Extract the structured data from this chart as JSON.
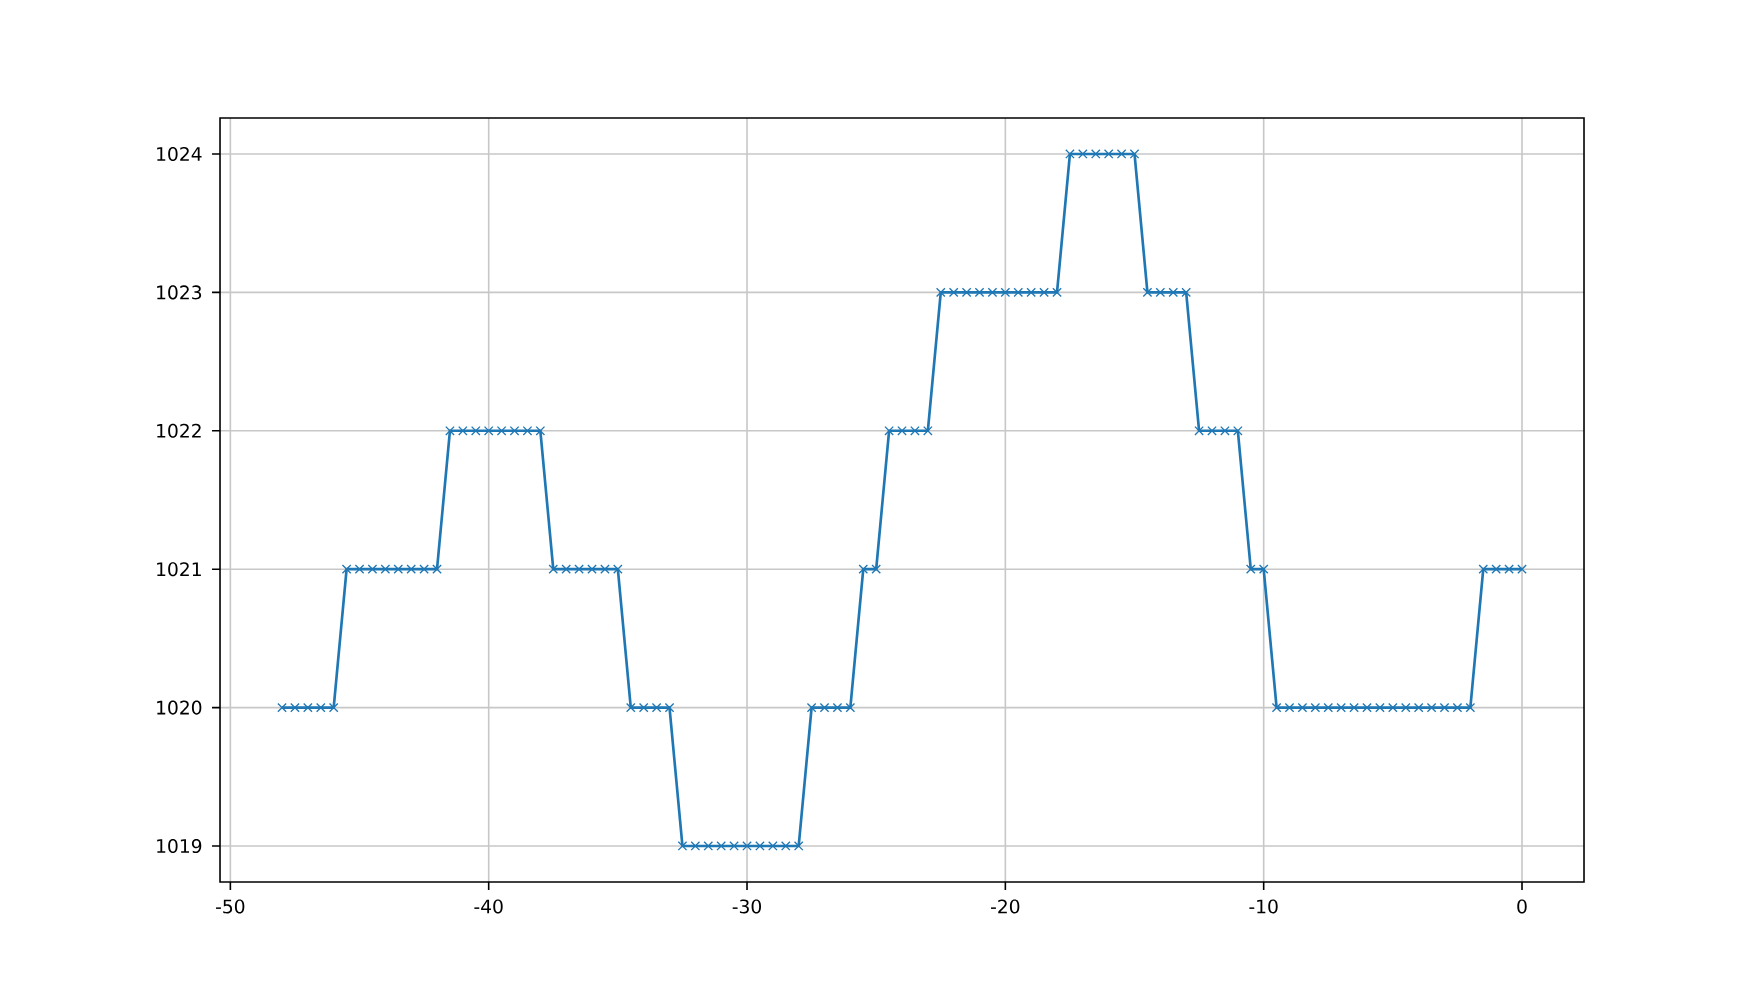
{
  "chart_data": {
    "type": "line",
    "color": "#1f77b4",
    "marker": "cross",
    "line_style": "solid",
    "grid": true,
    "x": [
      -48,
      -47.5,
      -47,
      -46.5,
      -46,
      -45.5,
      -45,
      -44.5,
      -44,
      -43.5,
      -43,
      -42.5,
      -42,
      -41.5,
      -41,
      -40.5,
      -40,
      -39.5,
      -39,
      -38.5,
      -38,
      -37.5,
      -37,
      -36.5,
      -36,
      -35.5,
      -35,
      -34.5,
      -34,
      -33.5,
      -33,
      -32.5,
      -32,
      -31.5,
      -31,
      -30.5,
      -30,
      -29.5,
      -29,
      -28.5,
      -28,
      -27.5,
      -27,
      -26.5,
      -26,
      -25.5,
      -25,
      -24.5,
      -24,
      -23.5,
      -23,
      -22.5,
      -22,
      -21.5,
      -21,
      -20.5,
      -20,
      -19.5,
      -19,
      -18.5,
      -18,
      -17.5,
      -17,
      -16.5,
      -16,
      -15.5,
      -15,
      -14.5,
      -14,
      -13.5,
      -13,
      -12.5,
      -12,
      -11.5,
      -11,
      -10.5,
      -10,
      -9.5,
      -9,
      -8.5,
      -8,
      -7.5,
      -7,
      -6.5,
      -6,
      -5.5,
      -5,
      -4.5,
      -4,
      -3.5,
      -3,
      -2.5,
      -2,
      -1.5,
      -1,
      -0.5,
      0
    ],
    "values": [
      1020,
      1020,
      1020,
      1020,
      1020,
      1021,
      1021,
      1021,
      1021,
      1021,
      1021,
      1021,
      1021,
      1022,
      1022,
      1022,
      1022,
      1022,
      1022,
      1022,
      1022,
      1021,
      1021,
      1021,
      1021,
      1021,
      1021,
      1020,
      1020,
      1020,
      1020,
      1019,
      1019,
      1019,
      1019,
      1019,
      1019,
      1019,
      1019,
      1019,
      1019,
      1020,
      1020,
      1020,
      1020,
      1021,
      1021,
      1022,
      1022,
      1022,
      1022,
      1023,
      1023,
      1023,
      1023,
      1023,
      1023,
      1023,
      1023,
      1023,
      1023,
      1024,
      1024,
      1024,
      1024,
      1024,
      1024,
      1023,
      1023,
      1023,
      1023,
      1022,
      1022,
      1022,
      1022,
      1021,
      1021,
      1020,
      1020,
      1020,
      1020,
      1020,
      1020,
      1020,
      1020,
      1020,
      1020,
      1020,
      1020,
      1020,
      1020,
      1020,
      1020,
      1021,
      1021,
      1021,
      1021
    ],
    "xlim": [
      -50.4,
      2.4
    ],
    "ylim": [
      1018.74,
      1024.26
    ],
    "xticks": [
      -50,
      -40,
      -30,
      -20,
      -10,
      0
    ],
    "yticks": [
      1019,
      1020,
      1021,
      1022,
      1023,
      1024
    ]
  }
}
